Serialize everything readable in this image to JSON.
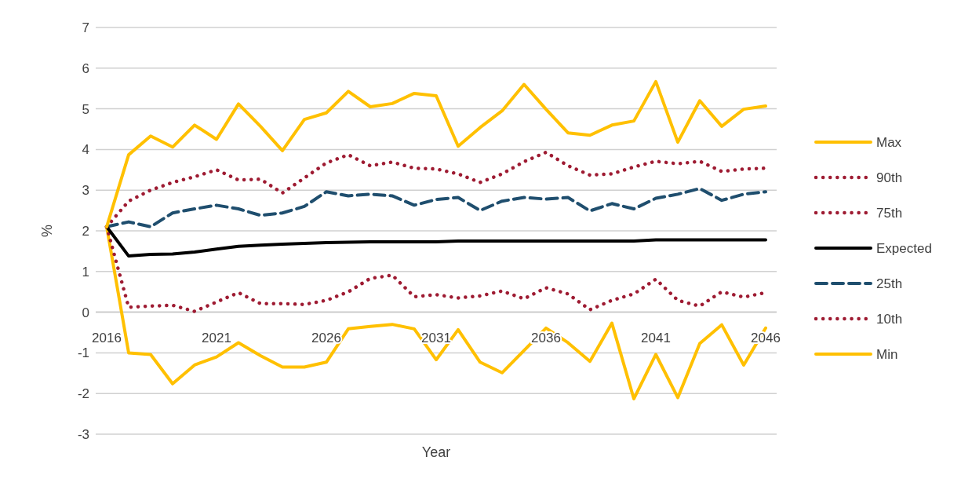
{
  "chart_data": {
    "type": "line",
    "xlabel": "Year",
    "ylabel": "%",
    "x": [
      2016,
      2017,
      2018,
      2019,
      2020,
      2021,
      2022,
      2023,
      2024,
      2025,
      2026,
      2027,
      2028,
      2029,
      2030,
      2031,
      2032,
      2033,
      2034,
      2035,
      2036,
      2037,
      2038,
      2039,
      2040,
      2041,
      2042,
      2043,
      2044,
      2045,
      2046
    ],
    "xlim": [
      2015.5,
      2046.5
    ],
    "xticks": [
      2016,
      2021,
      2026,
      2031,
      2036,
      2041,
      2046
    ],
    "ylim": [
      -3,
      7
    ],
    "yticks": [
      -3,
      -2,
      -1,
      0,
      1,
      2,
      3,
      4,
      5,
      6,
      7
    ],
    "grid": "y",
    "legend": "right",
    "series": [
      {
        "name": "Max",
        "color": "#ffc000",
        "line_style": "solid",
        "values": [
          2.1,
          3.87,
          4.33,
          4.06,
          4.6,
          4.25,
          5.12,
          4.57,
          3.97,
          4.74,
          4.9,
          5.43,
          5.05,
          5.13,
          5.38,
          5.32,
          4.08,
          4.54,
          4.95,
          5.6,
          4.99,
          4.41,
          4.35,
          4.6,
          4.7,
          5.67,
          4.18,
          5.2,
          4.57,
          4.99,
          5.07
        ]
      },
      {
        "name": "90th",
        "color": "#9e1b32",
        "line_style": "dotted",
        "values": [
          2.1,
          2.73,
          3.0,
          3.19,
          3.33,
          3.5,
          3.25,
          3.27,
          2.93,
          3.3,
          3.67,
          3.87,
          3.6,
          3.69,
          3.54,
          3.52,
          3.4,
          3.19,
          3.4,
          3.7,
          3.93,
          3.6,
          3.37,
          3.4,
          3.57,
          3.71,
          3.65,
          3.71,
          3.46,
          3.52,
          3.54
        ]
      },
      {
        "name": "75th",
        "color": "#9e1b32",
        "line_style": "dotted",
        "values": [
          null,
          null,
          null,
          null,
          null,
          null,
          null,
          null,
          null,
          null,
          null,
          null,
          null,
          null,
          null,
          null,
          null,
          null,
          null,
          null,
          null,
          null,
          null,
          null,
          null,
          null,
          null,
          null,
          null,
          null,
          null
        ]
      },
      {
        "name": "Expected",
        "color": "#000000",
        "line_style": "solid",
        "values": [
          2.1,
          1.38,
          1.42,
          1.43,
          1.48,
          1.55,
          1.62,
          1.65,
          1.67,
          1.69,
          1.71,
          1.72,
          1.73,
          1.73,
          1.73,
          1.73,
          1.75,
          1.75,
          1.75,
          1.75,
          1.75,
          1.75,
          1.75,
          1.75,
          1.75,
          1.78,
          1.78,
          1.78,
          1.78,
          1.78,
          1.78
        ]
      },
      {
        "name": "25th",
        "color": "#1f4e6e",
        "line_style": "dashed",
        "values": [
          2.1,
          2.22,
          2.1,
          2.44,
          2.54,
          2.63,
          2.54,
          2.38,
          2.44,
          2.6,
          2.96,
          2.86,
          2.9,
          2.86,
          2.63,
          2.77,
          2.82,
          2.5,
          2.73,
          2.82,
          2.78,
          2.82,
          2.49,
          2.67,
          2.54,
          2.8,
          2.9,
          3.04,
          2.75,
          2.9,
          2.96
        ]
      },
      {
        "name": "10th",
        "color": "#9e1b32",
        "line_style": "dotted",
        "values": [
          2.1,
          0.12,
          0.15,
          0.17,
          0.02,
          0.25,
          0.48,
          0.21,
          0.21,
          0.19,
          0.29,
          0.5,
          0.83,
          0.91,
          0.38,
          0.43,
          0.35,
          0.4,
          0.52,
          0.33,
          0.6,
          0.45,
          0.06,
          0.29,
          0.45,
          0.81,
          0.29,
          0.15,
          0.5,
          0.37,
          0.48
        ]
      },
      {
        "name": "Min",
        "color": "#ffc000",
        "line_style": "solid",
        "values": [
          2.1,
          -1.0,
          -1.04,
          -1.76,
          -1.3,
          -1.1,
          -0.75,
          -1.07,
          -1.35,
          -1.35,
          -1.23,
          -0.41,
          -0.35,
          -0.3,
          -0.41,
          -1.17,
          -0.43,
          -1.23,
          -1.49,
          -0.94,
          -0.39,
          -0.75,
          -1.21,
          -0.27,
          -2.13,
          -1.04,
          -2.1,
          -0.77,
          -0.31,
          -1.3,
          -0.39
        ]
      }
    ]
  }
}
